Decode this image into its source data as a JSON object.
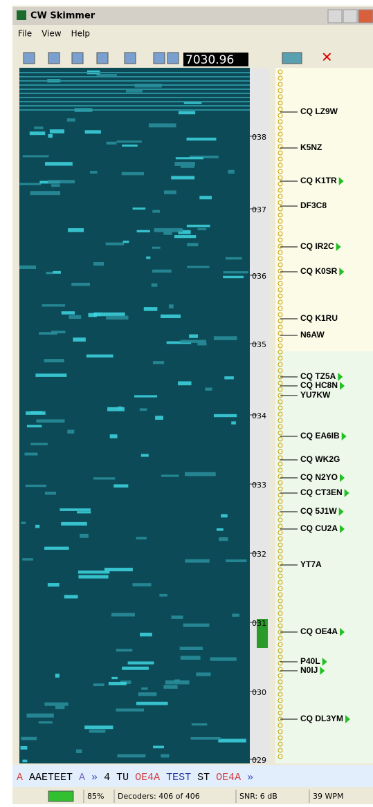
{
  "window": {
    "title": "CW Skimmer"
  },
  "menu": [
    "File",
    "View",
    "Help"
  ],
  "toolbar": {
    "frequency": "7030.96"
  },
  "scale": {
    "labels": [
      "038",
      "037",
      "036",
      "035",
      "034",
      "033",
      "032",
      "031",
      "030",
      "029"
    ]
  },
  "spots": [
    {
      "label": "CQ LZ9W",
      "arrow": false
    },
    {
      "label": "K5NZ",
      "arrow": false
    },
    {
      "label": "CQ K1TR",
      "arrow": true
    },
    {
      "label": "DF3C8",
      "arrow": false
    },
    {
      "label": "CQ IR2C",
      "arrow": true
    },
    {
      "label": "CQ K0SR",
      "arrow": true
    },
    {
      "label": "CQ K1RU",
      "arrow": false
    },
    {
      "label": "N6AW",
      "arrow": false
    },
    {
      "label": "CQ TZ5A",
      "arrow": true
    },
    {
      "label": "CQ HC8N",
      "arrow": true
    },
    {
      "label": "YU7KW",
      "arrow": false
    },
    {
      "label": "CQ EA6IB",
      "arrow": true
    },
    {
      "label": "CQ WK2G",
      "arrow": false
    },
    {
      "label": "CQ N2YO",
      "arrow": true
    },
    {
      "label": "CQ CT3EN",
      "arrow": true
    },
    {
      "label": "CQ 5J1W",
      "arrow": true
    },
    {
      "label": "CQ CU2A",
      "arrow": true
    },
    {
      "label": "YT7A",
      "arrow": false
    },
    {
      "label": "CQ OE4A",
      "arrow": true
    },
    {
      "label": "P40L",
      "arrow": true
    },
    {
      "label": "N0IJ",
      "arrow": true
    },
    {
      "label": "CQ DL3YM",
      "arrow": true
    }
  ],
  "decoded": [
    {
      "text": "A",
      "color": "#d04040"
    },
    {
      "text": "AAETEET",
      "color": "#000000"
    },
    {
      "text": "A",
      "color": "#7070c0"
    },
    {
      "text": "»",
      "color": "#3050c0"
    },
    {
      "text": "4",
      "color": "#000000"
    },
    {
      "text": "TU",
      "color": "#000000"
    },
    {
      "text": "OE4A",
      "color": "#d04040"
    },
    {
      "text": "TEST",
      "color": "#2030a0"
    },
    {
      "text": "ST",
      "color": "#000000"
    },
    {
      "text": "OE4A",
      "color": "#d04040"
    },
    {
      "text": "»",
      "color": "#3050c0"
    }
  ],
  "status": {
    "level": "85%",
    "decoders": "Decoders: 406 of 406",
    "snr": "SNR: 6 dB",
    "speed": "39 WPM"
  }
}
